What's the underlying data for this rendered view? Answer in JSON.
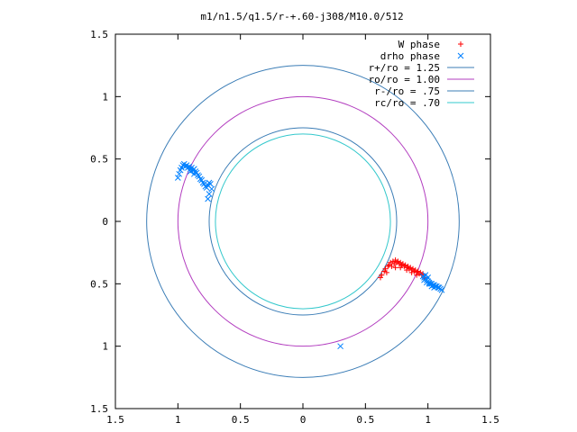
{
  "chart_data": {
    "type": "scatter",
    "title": "m1/n1.5/q1.5/r-+.60-j308/M10.0/512",
    "xlim": [
      -1.5,
      1.5
    ],
    "ylim": [
      -1.5,
      1.5
    ],
    "x_ticks": [
      -1.5,
      -1,
      -0.5,
      0,
      0.5,
      1,
      1.5
    ],
    "y_ticks": [
      -1.5,
      -1,
      -0.5,
      0,
      0.5,
      1,
      1.5
    ],
    "x_tick_labels": [
      "1.5",
      "1",
      "0.5",
      "0",
      "0.5",
      "1",
      "1.5"
    ],
    "y_tick_labels": [
      "1.5",
      "1",
      "0.5",
      "0",
      "0.5",
      "1",
      "1.5"
    ],
    "grid": false,
    "legend_position": "top-right",
    "series": [
      {
        "name": "W phase",
        "kind": "points",
        "marker": "plus",
        "color": "#ff0000",
        "points": [
          [
            0.62,
            -0.45
          ],
          [
            0.63,
            -0.43
          ],
          [
            0.65,
            -0.4
          ],
          [
            0.66,
            -0.38
          ],
          [
            0.68,
            -0.36
          ],
          [
            0.69,
            -0.35
          ],
          [
            0.7,
            -0.33
          ],
          [
            0.72,
            -0.32
          ],
          [
            0.73,
            -0.34
          ],
          [
            0.74,
            -0.31
          ],
          [
            0.75,
            -0.33
          ],
          [
            0.76,
            -0.32
          ],
          [
            0.77,
            -0.34
          ],
          [
            0.78,
            -0.33
          ],
          [
            0.79,
            -0.35
          ],
          [
            0.8,
            -0.34
          ],
          [
            0.81,
            -0.36
          ],
          [
            0.82,
            -0.35
          ],
          [
            0.83,
            -0.37
          ],
          [
            0.84,
            -0.36
          ],
          [
            0.85,
            -0.38
          ],
          [
            0.86,
            -0.37
          ],
          [
            0.87,
            -0.39
          ],
          [
            0.88,
            -0.38
          ],
          [
            0.89,
            -0.4
          ],
          [
            0.9,
            -0.39
          ],
          [
            0.91,
            -0.41
          ],
          [
            0.92,
            -0.4
          ],
          [
            0.93,
            -0.42
          ],
          [
            0.94,
            -0.41
          ],
          [
            0.95,
            -0.43
          ],
          [
            0.96,
            -0.42
          ],
          [
            0.71,
            -0.36
          ],
          [
            0.74,
            -0.37
          ],
          [
            0.78,
            -0.37
          ],
          [
            0.83,
            -0.39
          ],
          [
            0.87,
            -0.41
          ],
          [
            0.91,
            -0.43
          ],
          [
            0.67,
            -0.41
          ],
          [
            0.97,
            -0.45
          ]
        ]
      },
      {
        "name": "drho phase",
        "kind": "points",
        "marker": "cross",
        "color": "#0080ff",
        "points": [
          [
            -1.0,
            0.35
          ],
          [
            -0.99,
            0.38
          ],
          [
            -0.98,
            0.41
          ],
          [
            -0.97,
            0.43
          ],
          [
            -0.96,
            0.45
          ],
          [
            -0.95,
            0.46
          ],
          [
            -0.94,
            0.44
          ],
          [
            -0.93,
            0.45
          ],
          [
            -0.92,
            0.43
          ],
          [
            -0.91,
            0.44
          ],
          [
            -0.9,
            0.42
          ],
          [
            -0.89,
            0.43
          ],
          [
            -0.88,
            0.41
          ],
          [
            -0.87,
            0.42
          ],
          [
            -0.86,
            0.4
          ],
          [
            -0.85,
            0.39
          ],
          [
            -0.84,
            0.37
          ],
          [
            -0.83,
            0.36
          ],
          [
            -0.82,
            0.34
          ],
          [
            -0.81,
            0.33
          ],
          [
            -0.8,
            0.31
          ],
          [
            -0.79,
            0.3
          ],
          [
            -0.78,
            0.28
          ],
          [
            -0.77,
            0.27
          ],
          [
            -0.76,
            0.29
          ],
          [
            -0.75,
            0.31
          ],
          [
            -0.74,
            0.3
          ],
          [
            -0.73,
            0.26
          ],
          [
            -0.75,
            0.22
          ],
          [
            -0.76,
            0.18
          ],
          [
            -0.9,
            0.4
          ],
          [
            -0.87,
            0.38
          ],
          [
            0.96,
            -0.44
          ],
          [
            0.97,
            -0.45
          ],
          [
            0.98,
            -0.46
          ],
          [
            0.99,
            -0.47
          ],
          [
            1.0,
            -0.48
          ],
          [
            1.01,
            -0.49
          ],
          [
            1.02,
            -0.5
          ],
          [
            1.03,
            -0.5
          ],
          [
            1.04,
            -0.51
          ],
          [
            1.05,
            -0.51
          ],
          [
            1.06,
            -0.52
          ],
          [
            1.07,
            -0.52
          ],
          [
            1.08,
            -0.53
          ],
          [
            1.09,
            -0.53
          ],
          [
            1.1,
            -0.54
          ],
          [
            1.11,
            -0.55
          ],
          [
            0.97,
            -0.47
          ],
          [
            0.99,
            -0.49
          ],
          [
            1.01,
            -0.5
          ],
          [
            1.03,
            -0.52
          ],
          [
            1.05,
            -0.53
          ],
          [
            0.98,
            -0.43
          ],
          [
            1.0,
            -0.45
          ],
          [
            0.3,
            -1.0
          ]
        ]
      },
      {
        "name": "r+/ro = 1.25",
        "kind": "circle",
        "r": 1.25,
        "color": "#3b7db6"
      },
      {
        "name": "ro/ro = 1.00",
        "kind": "circle",
        "r": 1.0,
        "color": "#b23cbf"
      },
      {
        "name": "r-/ro = .75",
        "kind": "circle",
        "r": 0.75,
        "color": "#3b7db6"
      },
      {
        "name": "rc/ro = .70",
        "kind": "circle",
        "r": 0.7,
        "color": "#33c8cc"
      }
    ]
  }
}
